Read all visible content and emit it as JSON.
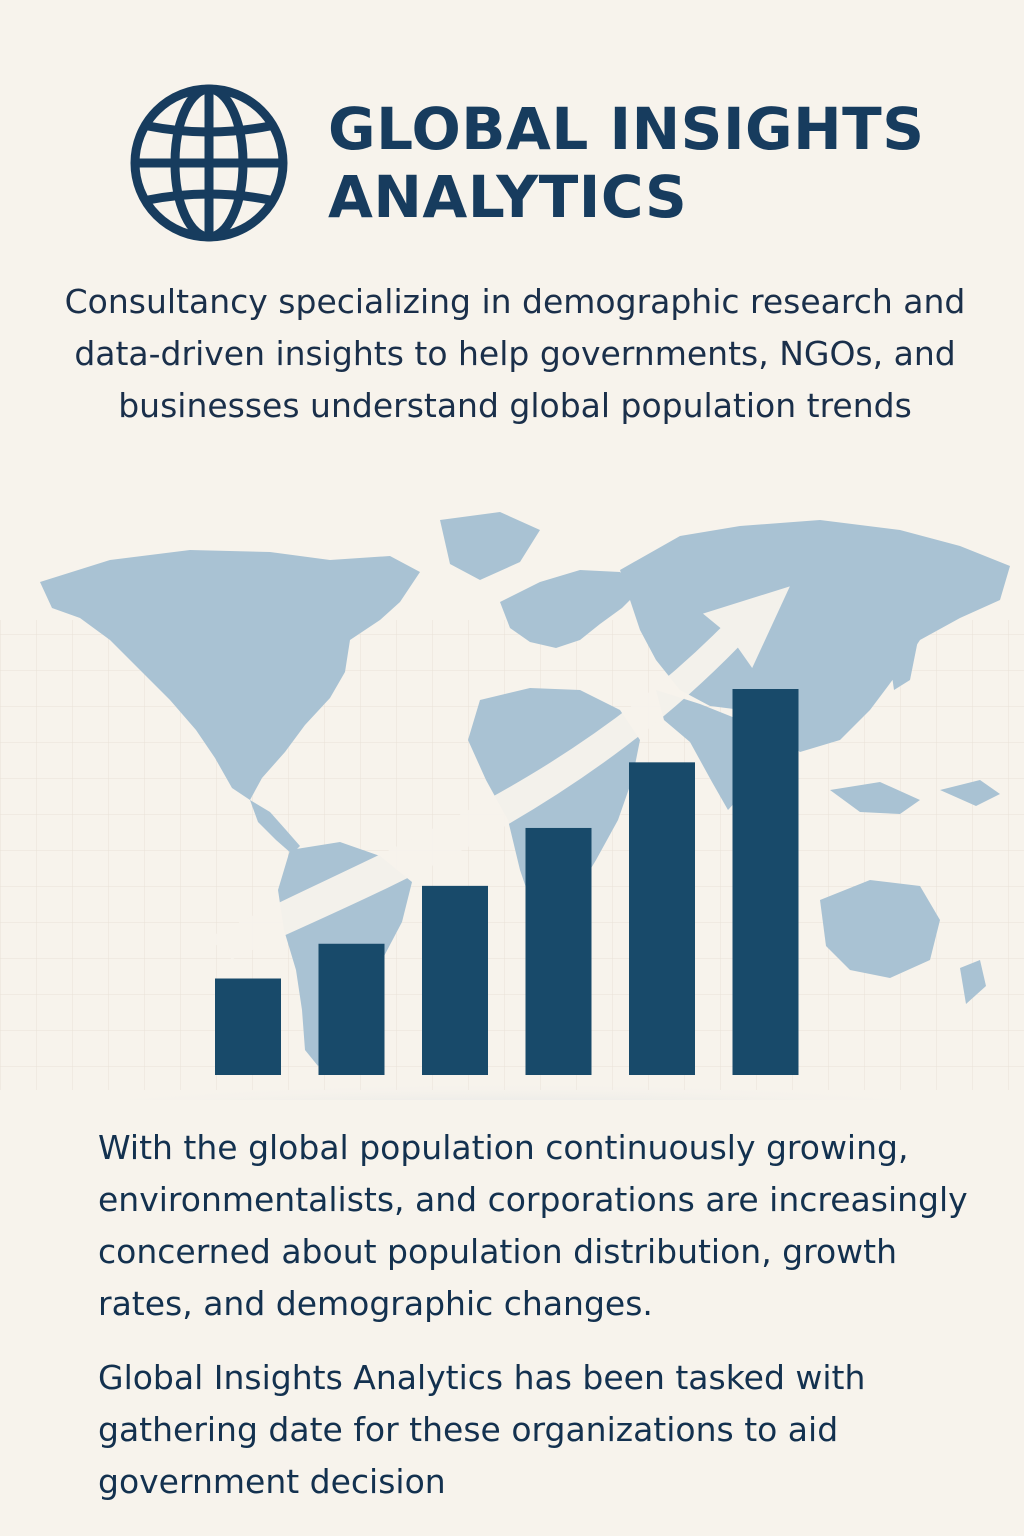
{
  "header": {
    "brand_name": "GLOBAL INSIGHTS ANALYTICS",
    "logo_icon": "globe-icon"
  },
  "tagline": "Consultancy specializing in demographic research and data-driven insights to help governments, NGOs, and businesses understand global population trends",
  "hero": {
    "background_icon": "world-map",
    "arrow_icon": "upward-trend-arrow-icon",
    "bar_levels": [
      0.25,
      0.34,
      0.49,
      0.64,
      0.81,
      1.0
    ]
  },
  "body": {
    "paragraph_1": "With the global population continuously growing, environmentalists, and corporations are increasingly concerned about population distribution, growth rates, and demographic changes.",
    "paragraph_2": "Global Insights Analytics has been tasked with gathering date for these organizations to aid government decision"
  },
  "colors": {
    "background": "#f7f3ec",
    "brand_navy": "#173c5e",
    "bar_navy": "#184a6a",
    "map_blue": "#a9c2d3",
    "arrow_cream": "#f7f3ec"
  }
}
